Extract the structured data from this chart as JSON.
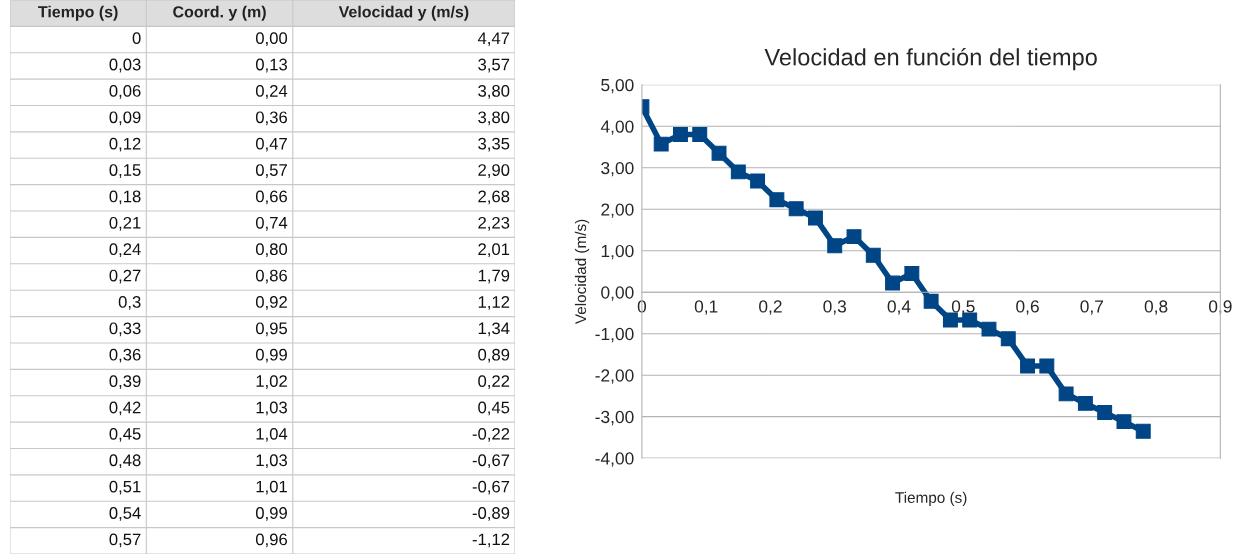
{
  "chart_data": [
    {
      "type": "other",
      "categories": [
        "Tiempo (s)",
        "Coord. y (m)",
        "Velocidad y (m/s)"
      ],
      "annotations": [
        "0",
        "0,00",
        "4,47",
        "0,03",
        "0,13",
        "3,57",
        "0,06",
        "0,24",
        "3,80",
        "0,09",
        "0,36",
        "3,80",
        "0,12",
        "0,47",
        "3,35",
        "0,15",
        "0,57",
        "2,90",
        "0,18",
        "0,66",
        "2,68",
        "0,21",
        "0,74",
        "2,23",
        "0,24",
        "0,80",
        "2,01",
        "0,27",
        "0,86",
        "1,79",
        "0,3",
        "0,92",
        "1,12",
        "0,33",
        "0,95",
        "1,34",
        "0,36",
        "0,99",
        "0,89",
        "0,39",
        "1,02",
        "0,22",
        "0,42",
        "1,03",
        "0,45",
        "0,45",
        "1,04",
        "-0,22",
        "0,48",
        "1,03",
        "-0,67",
        "0,51",
        "1,01",
        "-0,67",
        "0,54",
        "0,99",
        "-0,89",
        "0,57",
        "0,96",
        "-1,12"
      ]
    },
    {
      "type": "line",
      "title": "Velocidad en función del tiempo",
      "xlabel": "Tiempo (s)",
      "ylabel": "Velocidad (m/s)",
      "x": [
        0,
        0.03,
        0.06,
        0.09,
        0.12,
        0.15,
        0.18,
        0.21,
        0.24,
        0.27,
        0.3,
        0.33,
        0.36,
        0.39,
        0.42,
        0.45,
        0.48,
        0.51,
        0.54,
        0.57,
        0.6,
        0.63,
        0.66,
        0.69,
        0.72,
        0.75,
        0.78
      ],
      "series": [
        {
          "color": "#004586",
          "values": [
            4.47,
            3.57,
            3.8,
            3.8,
            3.35,
            2.9,
            2.68,
            2.23,
            2.01,
            1.79,
            1.12,
            1.34,
            0.89,
            0.22,
            0.45,
            -0.22,
            -0.67,
            -0.67,
            -0.89,
            -1.12,
            -1.78,
            -1.78,
            -2.45,
            -2.68,
            -2.9,
            -3.12,
            -3.35
          ]
        }
      ],
      "xlim": [
        0,
        0.9
      ],
      "xticks": [
        0,
        {
          "value": 0.1,
          "label": "0,1"
        },
        {
          "value": 0.2,
          "label": "0,2"
        },
        {
          "value": 0.3,
          "label": "0,3"
        },
        {
          "value": 0.4,
          "label": "0,4"
        },
        {
          "value": 0.5,
          "label": "0,5"
        },
        {
          "value": 0.6,
          "label": "0,6"
        },
        {
          "value": 0.7,
          "label": "0,7"
        },
        {
          "value": 0.8,
          "label": "0,8"
        },
        {
          "value": 0.9,
          "label": "0,9"
        }
      ],
      "ylim": [
        -4,
        5
      ],
      "yticks": [
        {
          "value": -4,
          "label": "-4,00"
        },
        {
          "value": -3,
          "label": "-3,00"
        },
        {
          "value": -2,
          "label": "-2,00"
        },
        {
          "value": -1,
          "label": "-1,00"
        },
        {
          "value": 0,
          "label": "0,00"
        },
        {
          "value": 1,
          "label": "1,00"
        },
        {
          "value": 2,
          "label": "2,00"
        },
        {
          "value": 3,
          "label": "3,00"
        },
        {
          "value": 4,
          "label": "4,00"
        },
        {
          "value": 5,
          "label": "5,00"
        }
      ],
      "grid": "y",
      "marker": "square",
      "line_style": "solid",
      "legend": false
    }
  ]
}
